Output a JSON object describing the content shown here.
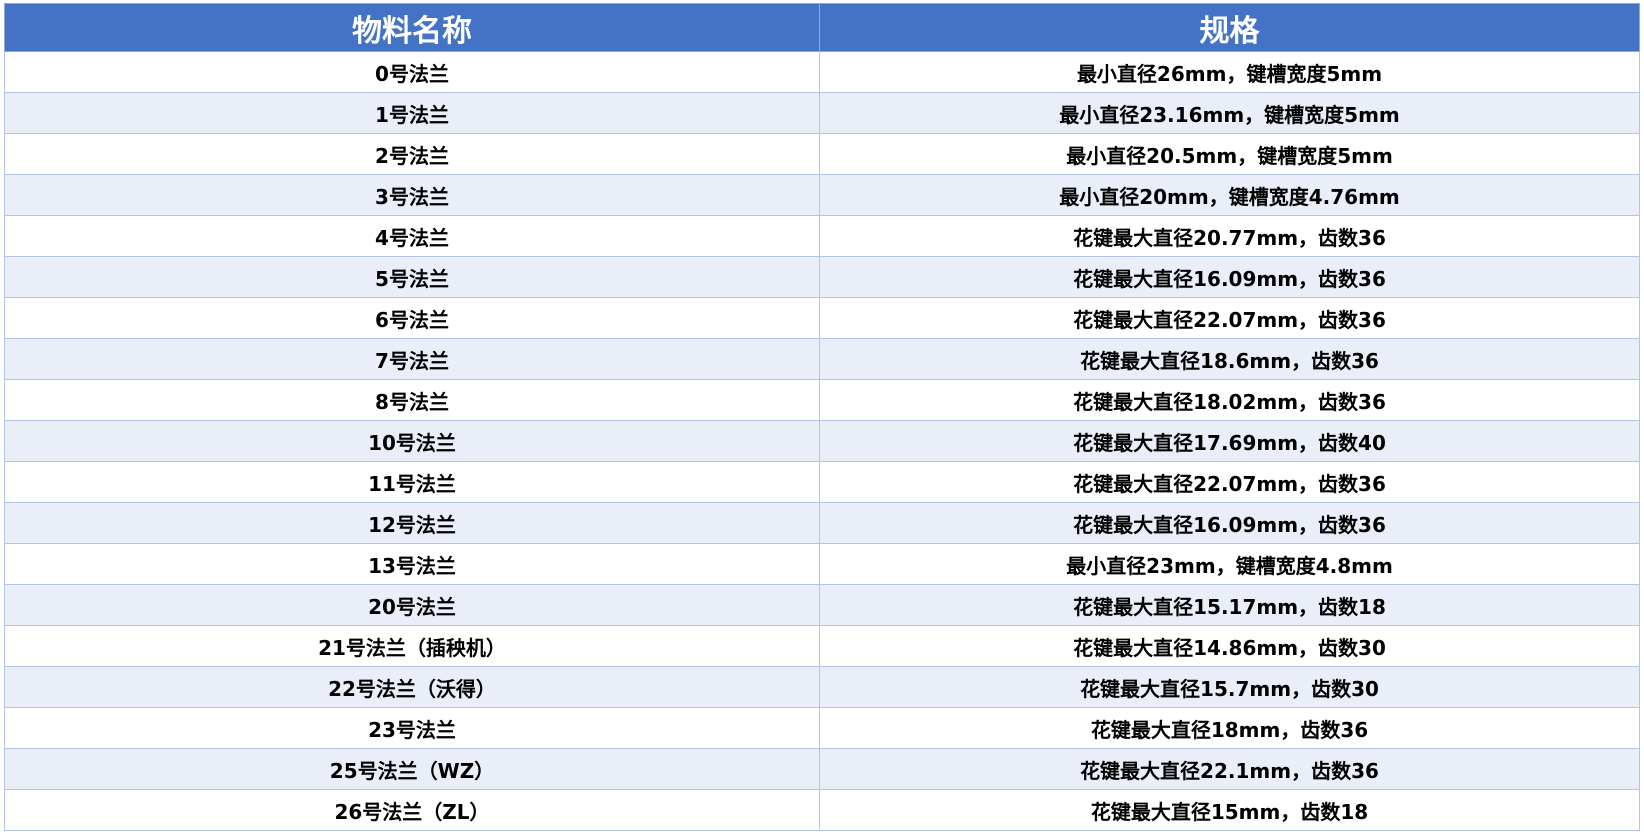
{
  "table": {
    "headers": [
      "物料名称",
      "规格"
    ],
    "rows": [
      {
        "name": "0号法兰",
        "spec": "最小直径26mm，键槽宽度5mm"
      },
      {
        "name": "1号法兰",
        "spec": "最小直径23.16mm，键槽宽度5mm"
      },
      {
        "name": "2号法兰",
        "spec": "最小直径20.5mm，键槽宽度5mm"
      },
      {
        "name": "3号法兰",
        "spec": "最小直径20mm，键槽宽度4.76mm"
      },
      {
        "name": "4号法兰",
        "spec": "花键最大直径20.77mm，齿数36"
      },
      {
        "name": "5号法兰",
        "spec": "花键最大直径16.09mm，齿数36"
      },
      {
        "name": "6号法兰",
        "spec": "花键最大直径22.07mm，齿数36"
      },
      {
        "name": "7号法兰",
        "spec": "花键最大直径18.6mm，齿数36"
      },
      {
        "name": "8号法兰",
        "spec": "花键最大直径18.02mm，齿数36"
      },
      {
        "name": "10号法兰",
        "spec": "花键最大直径17.69mm，齿数40"
      },
      {
        "name": "11号法兰",
        "spec": "花键最大直径22.07mm，齿数36"
      },
      {
        "name": "12号法兰",
        "spec": "花键最大直径16.09mm，齿数36"
      },
      {
        "name": "13号法兰",
        "spec": "最小直径23mm，键槽宽度4.8mm"
      },
      {
        "name": "20号法兰",
        "spec": "花键最大直径15.17mm，齿数18"
      },
      {
        "name": "21号法兰（插秧机）",
        "spec": "花键最大直径14.86mm，齿数30"
      },
      {
        "name": "22号法兰（沃得）",
        "spec": "花键最大直径15.7mm，齿数30"
      },
      {
        "name": "23号法兰",
        "spec": "花键最大直径18mm，齿数36"
      },
      {
        "name": "25号法兰（WZ）",
        "spec": "花键最大直径22.1mm，齿数36"
      },
      {
        "name": "26号法兰（ZL）",
        "spec": "花键最大直径15mm，齿数18"
      }
    ]
  },
  "colors": {
    "header_bg": "#4472c4",
    "alt_row_bg": "#e9eef8",
    "border": "#b4c6e7"
  }
}
